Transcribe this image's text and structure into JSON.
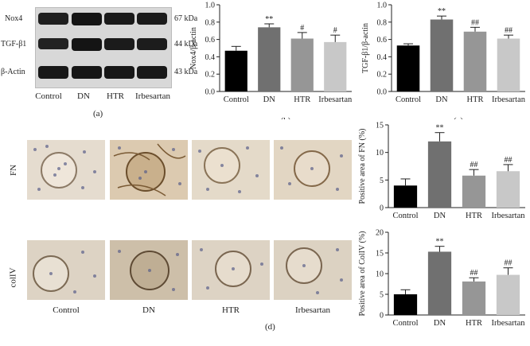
{
  "panel_a": {
    "rows": [
      {
        "label": "Nox4",
        "kda": "67 kDa",
        "intensity": [
          0.85,
          1.0,
          0.92,
          0.9
        ]
      },
      {
        "label": "TGF-β1",
        "kda": "44 kDa",
        "intensity": [
          0.8,
          1.0,
          0.9,
          0.88
        ]
      },
      {
        "label": "β-Actin",
        "kda": "43 kDa",
        "intensity": [
          0.95,
          0.97,
          0.96,
          0.95
        ]
      }
    ],
    "lanes": [
      "Control",
      "DN",
      "HTR",
      "Irbesartan"
    ],
    "letter": "(a)"
  },
  "panel_d": {
    "rows": [
      {
        "label": "FN"
      },
      {
        "label": "colIV"
      }
    ],
    "conditions": [
      "Control",
      "DN",
      "HTR",
      "Irbesartan"
    ],
    "letter": "(d)"
  },
  "chart_data": [
    {
      "id": "b",
      "type": "bar",
      "letter": "(b)",
      "ylabel": "Nox4/β-actin",
      "ylim": [
        0,
        1.0
      ],
      "yticks": [
        "0.0",
        "0.2",
        "0.4",
        "0.6",
        "0.8",
        "1.0"
      ],
      "categories": [
        "Control",
        "DN",
        "HTR",
        "Irbesartan"
      ],
      "values": [
        0.47,
        0.74,
        0.61,
        0.57
      ],
      "errors": [
        0.05,
        0.04,
        0.07,
        0.08
      ],
      "annotations": [
        "",
        "**",
        "#",
        "#"
      ],
      "colors": [
        "#000000",
        "#707070",
        "#969696",
        "#c8c8c8"
      ]
    },
    {
      "id": "c",
      "type": "bar",
      "letter": "(c)",
      "ylabel": "TGF-β1/β-actin",
      "ylim": [
        0,
        1.0
      ],
      "yticks": [
        "0.0",
        "0.2",
        "0.4",
        "0.6",
        "0.8",
        "1.0"
      ],
      "categories": [
        "Control",
        "DN",
        "HTR",
        "Irbesartan"
      ],
      "values": [
        0.53,
        0.83,
        0.69,
        0.61
      ],
      "errors": [
        0.02,
        0.04,
        0.05,
        0.04
      ],
      "annotations": [
        "",
        "**",
        "##",
        "##"
      ],
      "colors": [
        "#000000",
        "#707070",
        "#969696",
        "#c8c8c8"
      ]
    },
    {
      "id": "d1",
      "type": "bar",
      "ylabel": "Positive area of FN (%)",
      "ylim": [
        0,
        15
      ],
      "yticks": [
        "0",
        "5",
        "10",
        "15"
      ],
      "categories": [
        "Control",
        "DN",
        "HTR",
        "Irbesartan"
      ],
      "values": [
        4.0,
        12.0,
        5.8,
        6.6
      ],
      "errors": [
        1.2,
        1.6,
        1.1,
        1.2
      ],
      "annotations": [
        "",
        "**",
        "##",
        "##"
      ],
      "colors": [
        "#000000",
        "#707070",
        "#969696",
        "#c8c8c8"
      ]
    },
    {
      "id": "d2",
      "type": "bar",
      "ylabel": "Positive area of ColIV (%)",
      "ylim": [
        0,
        20
      ],
      "yticks": [
        "0",
        "5",
        "10",
        "15",
        "20"
      ],
      "categories": [
        "Control",
        "DN",
        "HTR",
        "Irbesartan"
      ],
      "values": [
        5.0,
        15.3,
        8.1,
        9.7
      ],
      "errors": [
        1.1,
        1.3,
        0.9,
        1.7
      ],
      "annotations": [
        "",
        "**",
        "##",
        "##"
      ],
      "colors": [
        "#000000",
        "#707070",
        "#969696",
        "#c8c8c8"
      ]
    }
  ]
}
